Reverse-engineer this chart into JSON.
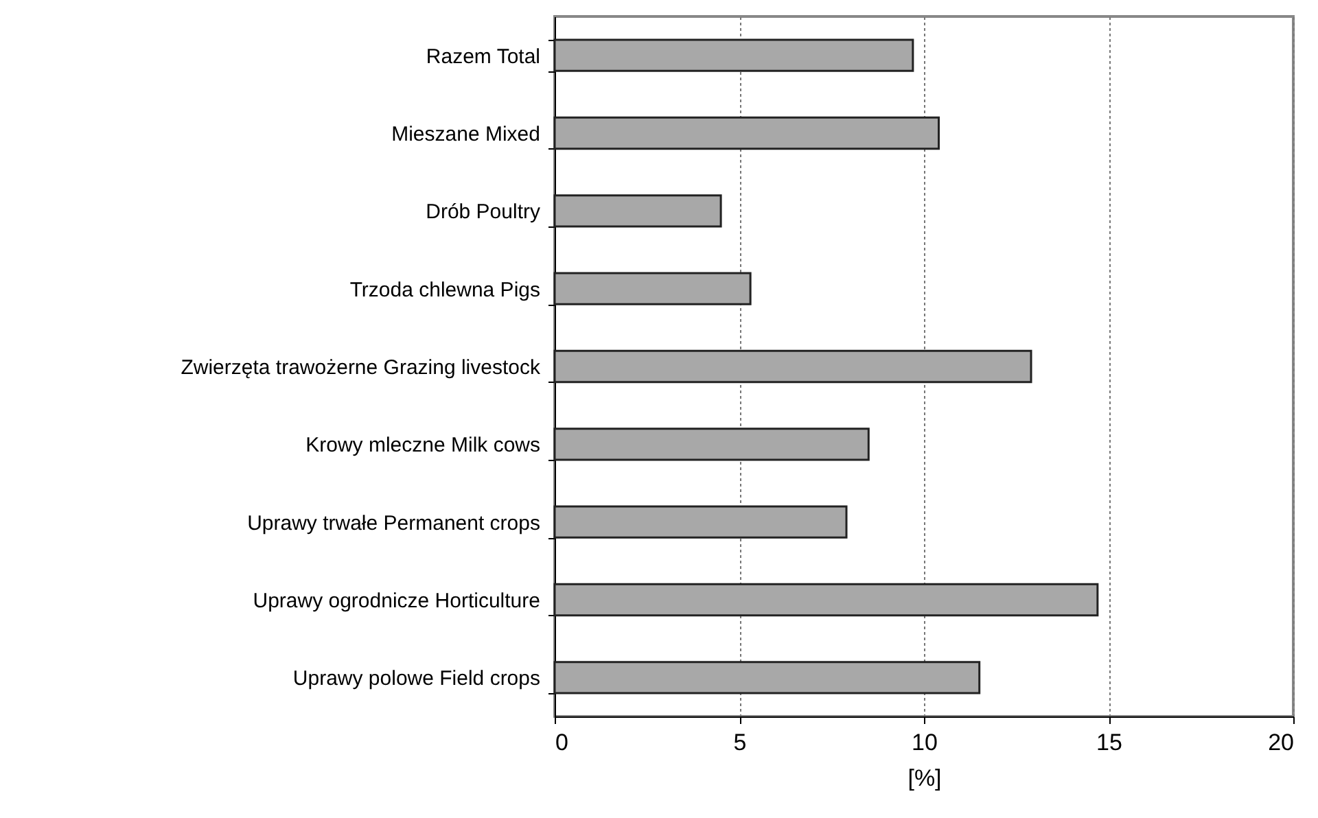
{
  "chart_data": {
    "type": "bar",
    "orientation": "horizontal",
    "xlabel": "[%]",
    "categories": [
      "Razem  Total",
      "Mieszane  Mixed",
      "Drób  Poultry",
      "Trzoda chlewna  Pigs",
      "Zwierzęta trawożerne  Grazing livestock",
      "Krowy mleczne  Milk cows",
      "Uprawy trwałe  Permanent crops",
      "Uprawy ogrodnicze  Horticulture",
      "Uprawy polowe  Field crops"
    ],
    "values": [
      9.7,
      10.4,
      4.5,
      5.3,
      12.9,
      8.5,
      7.9,
      14.7,
      11.5
    ],
    "color": "#a8a8a8",
    "xlim": [
      0,
      20
    ],
    "xticks": [
      0,
      5,
      10,
      15,
      20
    ],
    "grid": "x"
  }
}
